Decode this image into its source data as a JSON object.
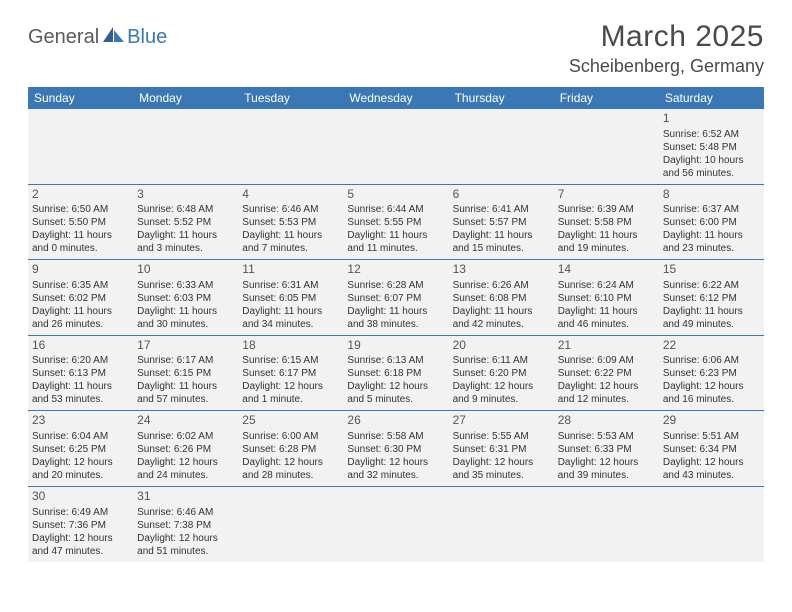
{
  "logo": {
    "part1": "General",
    "part2": "Blue"
  },
  "title": "March 2025",
  "location": "Scheibenberg, Germany",
  "colors": {
    "header_bg": "#3a78b5",
    "header_text": "#ffffff",
    "cell_bg": "#f2f2f2",
    "cell_border": "#3a78b5",
    "text": "#333333",
    "logo_gray": "#5a5a5a",
    "logo_blue": "#3a78b5"
  },
  "weekdays": [
    "Sunday",
    "Monday",
    "Tuesday",
    "Wednesday",
    "Thursday",
    "Friday",
    "Saturday"
  ],
  "weeks": [
    [
      null,
      null,
      null,
      null,
      null,
      null,
      {
        "d": "1",
        "sr": "Sunrise: 6:52 AM",
        "ss": "Sunset: 5:48 PM",
        "dl": "Daylight: 10 hours and 56 minutes."
      }
    ],
    [
      {
        "d": "2",
        "sr": "Sunrise: 6:50 AM",
        "ss": "Sunset: 5:50 PM",
        "dl": "Daylight: 11 hours and 0 minutes."
      },
      {
        "d": "3",
        "sr": "Sunrise: 6:48 AM",
        "ss": "Sunset: 5:52 PM",
        "dl": "Daylight: 11 hours and 3 minutes."
      },
      {
        "d": "4",
        "sr": "Sunrise: 6:46 AM",
        "ss": "Sunset: 5:53 PM",
        "dl": "Daylight: 11 hours and 7 minutes."
      },
      {
        "d": "5",
        "sr": "Sunrise: 6:44 AM",
        "ss": "Sunset: 5:55 PM",
        "dl": "Daylight: 11 hours and 11 minutes."
      },
      {
        "d": "6",
        "sr": "Sunrise: 6:41 AM",
        "ss": "Sunset: 5:57 PM",
        "dl": "Daylight: 11 hours and 15 minutes."
      },
      {
        "d": "7",
        "sr": "Sunrise: 6:39 AM",
        "ss": "Sunset: 5:58 PM",
        "dl": "Daylight: 11 hours and 19 minutes."
      },
      {
        "d": "8",
        "sr": "Sunrise: 6:37 AM",
        "ss": "Sunset: 6:00 PM",
        "dl": "Daylight: 11 hours and 23 minutes."
      }
    ],
    [
      {
        "d": "9",
        "sr": "Sunrise: 6:35 AM",
        "ss": "Sunset: 6:02 PM",
        "dl": "Daylight: 11 hours and 26 minutes."
      },
      {
        "d": "10",
        "sr": "Sunrise: 6:33 AM",
        "ss": "Sunset: 6:03 PM",
        "dl": "Daylight: 11 hours and 30 minutes."
      },
      {
        "d": "11",
        "sr": "Sunrise: 6:31 AM",
        "ss": "Sunset: 6:05 PM",
        "dl": "Daylight: 11 hours and 34 minutes."
      },
      {
        "d": "12",
        "sr": "Sunrise: 6:28 AM",
        "ss": "Sunset: 6:07 PM",
        "dl": "Daylight: 11 hours and 38 minutes."
      },
      {
        "d": "13",
        "sr": "Sunrise: 6:26 AM",
        "ss": "Sunset: 6:08 PM",
        "dl": "Daylight: 11 hours and 42 minutes."
      },
      {
        "d": "14",
        "sr": "Sunrise: 6:24 AM",
        "ss": "Sunset: 6:10 PM",
        "dl": "Daylight: 11 hours and 46 minutes."
      },
      {
        "d": "15",
        "sr": "Sunrise: 6:22 AM",
        "ss": "Sunset: 6:12 PM",
        "dl": "Daylight: 11 hours and 49 minutes."
      }
    ],
    [
      {
        "d": "16",
        "sr": "Sunrise: 6:20 AM",
        "ss": "Sunset: 6:13 PM",
        "dl": "Daylight: 11 hours and 53 minutes."
      },
      {
        "d": "17",
        "sr": "Sunrise: 6:17 AM",
        "ss": "Sunset: 6:15 PM",
        "dl": "Daylight: 11 hours and 57 minutes."
      },
      {
        "d": "18",
        "sr": "Sunrise: 6:15 AM",
        "ss": "Sunset: 6:17 PM",
        "dl": "Daylight: 12 hours and 1 minute."
      },
      {
        "d": "19",
        "sr": "Sunrise: 6:13 AM",
        "ss": "Sunset: 6:18 PM",
        "dl": "Daylight: 12 hours and 5 minutes."
      },
      {
        "d": "20",
        "sr": "Sunrise: 6:11 AM",
        "ss": "Sunset: 6:20 PM",
        "dl": "Daylight: 12 hours and 9 minutes."
      },
      {
        "d": "21",
        "sr": "Sunrise: 6:09 AM",
        "ss": "Sunset: 6:22 PM",
        "dl": "Daylight: 12 hours and 12 minutes."
      },
      {
        "d": "22",
        "sr": "Sunrise: 6:06 AM",
        "ss": "Sunset: 6:23 PM",
        "dl": "Daylight: 12 hours and 16 minutes."
      }
    ],
    [
      {
        "d": "23",
        "sr": "Sunrise: 6:04 AM",
        "ss": "Sunset: 6:25 PM",
        "dl": "Daylight: 12 hours and 20 minutes."
      },
      {
        "d": "24",
        "sr": "Sunrise: 6:02 AM",
        "ss": "Sunset: 6:26 PM",
        "dl": "Daylight: 12 hours and 24 minutes."
      },
      {
        "d": "25",
        "sr": "Sunrise: 6:00 AM",
        "ss": "Sunset: 6:28 PM",
        "dl": "Daylight: 12 hours and 28 minutes."
      },
      {
        "d": "26",
        "sr": "Sunrise: 5:58 AM",
        "ss": "Sunset: 6:30 PM",
        "dl": "Daylight: 12 hours and 32 minutes."
      },
      {
        "d": "27",
        "sr": "Sunrise: 5:55 AM",
        "ss": "Sunset: 6:31 PM",
        "dl": "Daylight: 12 hours and 35 minutes."
      },
      {
        "d": "28",
        "sr": "Sunrise: 5:53 AM",
        "ss": "Sunset: 6:33 PM",
        "dl": "Daylight: 12 hours and 39 minutes."
      },
      {
        "d": "29",
        "sr": "Sunrise: 5:51 AM",
        "ss": "Sunset: 6:34 PM",
        "dl": "Daylight: 12 hours and 43 minutes."
      }
    ],
    [
      {
        "d": "30",
        "sr": "Sunrise: 6:49 AM",
        "ss": "Sunset: 7:36 PM",
        "dl": "Daylight: 12 hours and 47 minutes."
      },
      {
        "d": "31",
        "sr": "Sunrise: 6:46 AM",
        "ss": "Sunset: 7:38 PM",
        "dl": "Daylight: 12 hours and 51 minutes."
      },
      null,
      null,
      null,
      null,
      null
    ]
  ]
}
